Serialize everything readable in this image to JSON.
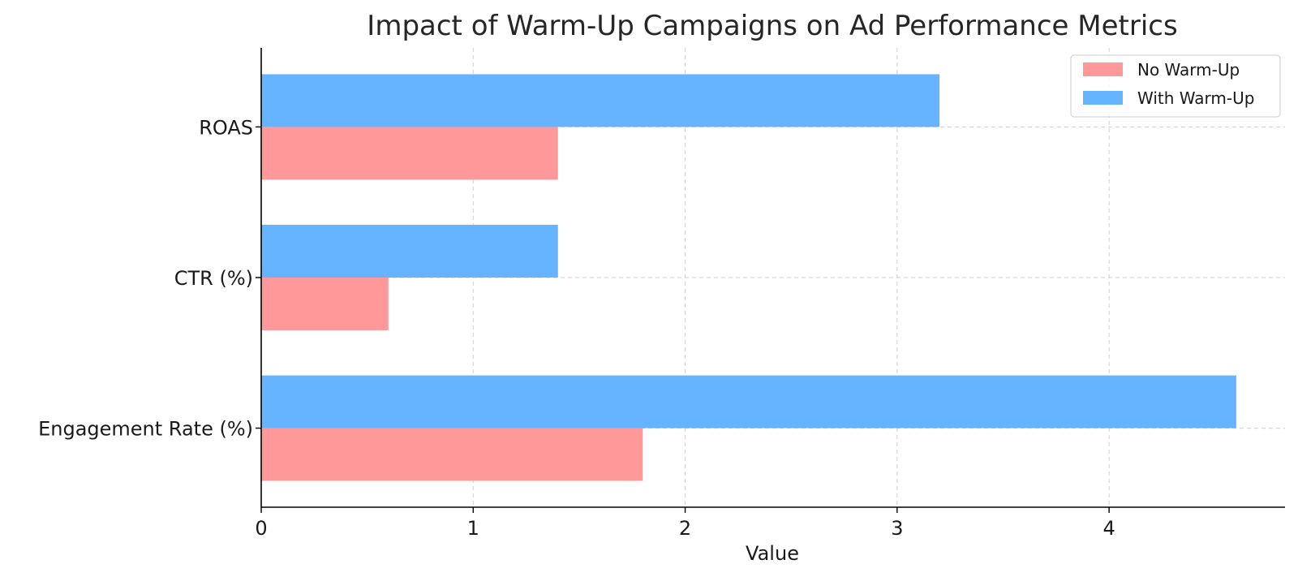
{
  "chart_data": {
    "type": "bar",
    "orientation": "horizontal",
    "title": "Impact of Warm-Up Campaigns on Ad Performance Metrics",
    "xlabel": "Value",
    "ylabel": "",
    "xlim": [
      0,
      4.83
    ],
    "x_ticks": [
      "0",
      "1",
      "2",
      "3",
      "4"
    ],
    "categories": [
      "Engagement Rate (%)",
      "CTR (%)",
      "ROAS"
    ],
    "series": [
      {
        "name": "No Warm-Up",
        "color": "#ff9999",
        "values": [
          1.8,
          0.6,
          1.4
        ]
      },
      {
        "name": "With Warm-Up",
        "color": "#66b3ff",
        "values": [
          4.6,
          1.4,
          3.2
        ]
      }
    ],
    "grid": true,
    "legend_position": "top-right"
  }
}
